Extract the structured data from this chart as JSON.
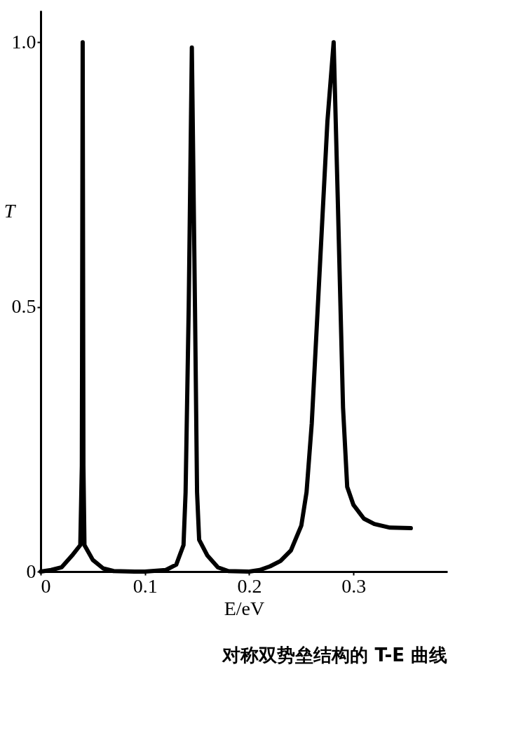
{
  "chart_data": {
    "type": "line",
    "title": "对称双势垒结构的 T-E 曲线",
    "xlabel": "E/eV",
    "ylabel": "T",
    "x": [
      0,
      0.01,
      0.02,
      0.03,
      0.038,
      0.0395,
      0.0403,
      0.041,
      0.042,
      0.05,
      0.06,
      0.07,
      0.09,
      0.1,
      0.12,
      0.13,
      0.137,
      0.139,
      0.142,
      0.145,
      0.148,
      0.15,
      0.152,
      0.16,
      0.17,
      0.18,
      0.2,
      0.21,
      0.22,
      0.23,
      0.24,
      0.25,
      0.255,
      0.26,
      0.265,
      0.27,
      0.275,
      0.281,
      0.285,
      0.29,
      0.294,
      0.3,
      0.31,
      0.32,
      0.335,
      0.355
    ],
    "series": [
      {
        "color": "#000000",
        "values": [
          0,
          0.003,
          0.008,
          0.03,
          0.05,
          0.2,
          1.0,
          0.2,
          0.05,
          0.022,
          0.006,
          0.001,
          0,
          0,
          0.003,
          0.013,
          0.05,
          0.15,
          0.5,
          0.99,
          0.5,
          0.15,
          0.06,
          0.03,
          0.008,
          0.001,
          0,
          0.003,
          0.01,
          0.02,
          0.04,
          0.087,
          0.15,
          0.28,
          0.47,
          0.66,
          0.85,
          1.0,
          0.7,
          0.31,
          0.16,
          0.126,
          0.1,
          0.09,
          0.083,
          0.082
        ]
      }
    ],
    "xlim": [
      0,
      0.39
    ],
    "ylim": [
      0,
      1.06
    ],
    "xticks": [
      0,
      0.1,
      0.2,
      0.3
    ],
    "yticks": [
      0,
      0.5,
      {
        "value": 1,
        "label": "1.0"
      }
    ],
    "grid": false,
    "marker": "none",
    "line_style": "solid"
  }
}
